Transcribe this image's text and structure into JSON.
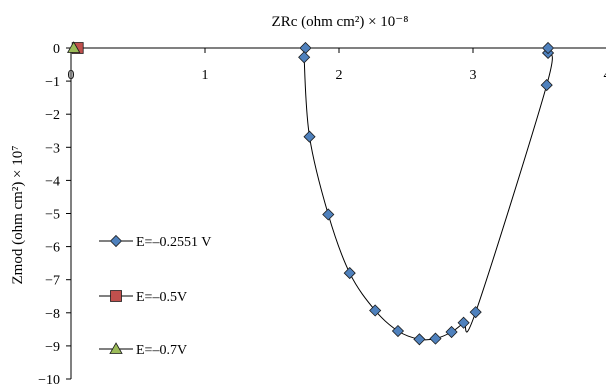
{
  "chart_data": {
    "type": "scatter",
    "title": "ZRc (ohm cm²) × 10⁻⁸",
    "xlabel": "ZRc (ohm cm²) × 10⁻⁸",
    "ylabel": "Zmod (ohm cm²) × 10⁷",
    "xlim": [
      0,
      4
    ],
    "ylim": [
      -10,
      0
    ],
    "x_ticks": [
      "0",
      "1",
      "2",
      "3",
      "4"
    ],
    "y_ticks": [
      "0",
      "−1",
      "−2",
      "−3",
      "−4",
      "−5",
      "−6",
      "−7",
      "−8",
      "−9",
      "−10"
    ],
    "x_axis_position": "top",
    "grid": false,
    "legend_position": "left",
    "series": [
      {
        "name": "E=–0.2551 V",
        "marker": "diamond",
        "color": "#4f81bd",
        "connected": true,
        "x": [
          1.75,
          1.74,
          1.78,
          1.92,
          2.08,
          2.27,
          2.44,
          2.6,
          2.72,
          2.84,
          2.93,
          3.02,
          3.55,
          3.56,
          3.56
        ],
        "y": [
          0,
          -0.28,
          -2.68,
          -5.03,
          -6.8,
          -7.93,
          -8.55,
          -8.8,
          -8.78,
          -8.58,
          -8.3,
          -7.98,
          -1.12,
          -0.15,
          0
        ]
      },
      {
        "name": "E=–0.5V",
        "marker": "square",
        "color": "#c0504d",
        "connected": false,
        "x": [
          0.05
        ],
        "y": [
          0
        ]
      },
      {
        "name": "E=–0.7V",
        "marker": "triangle",
        "color": "#9bbb59",
        "connected": false,
        "x": [
          0.02
        ],
        "y": [
          0
        ]
      }
    ]
  }
}
